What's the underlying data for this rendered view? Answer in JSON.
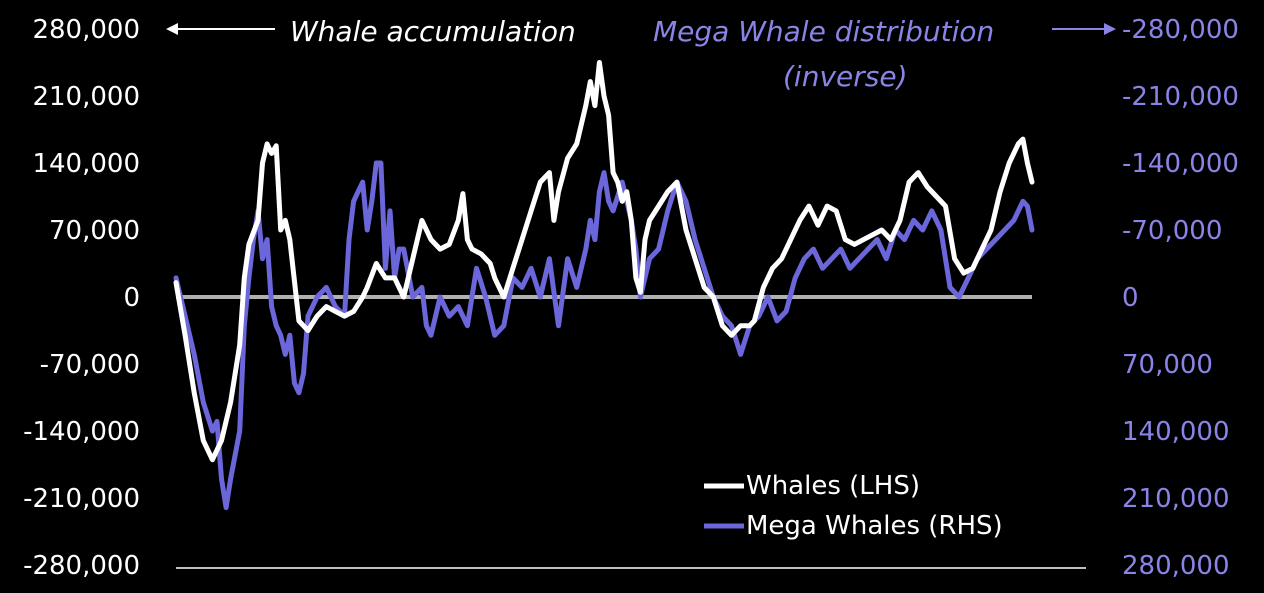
{
  "chart_data": {
    "type": "line",
    "title_left": "Whale accumulation",
    "title_right_line1": "Mega Whale distribution",
    "title_right_line2": "(inverse)",
    "y_left": {
      "ticks": [
        "280,000",
        "210,000",
        "140,000",
        "70,000",
        "0",
        "-70,000",
        "-140,000",
        "-210,000",
        "-280,000"
      ],
      "range": [
        -280000,
        280000
      ]
    },
    "y_right": {
      "ticks": [
        "-280,000",
        "-210,000",
        "-140,000",
        "-70,000",
        "0",
        "70,000",
        "140,000",
        "210,000",
        "280,000"
      ],
      "range_inverted": [
        280000,
        -280000
      ]
    },
    "legend": {
      "whales": "Whales (LHS)",
      "mega": "Mega Whales (RHS)"
    },
    "colors": {
      "whales": "#ffffff",
      "mega": "#6b66d9",
      "mega_text": "#8a84e6",
      "zero_line": "#b0b0b0",
      "background": "#000000"
    },
    "series": [
      {
        "name": "Whales (LHS)",
        "axis": "left",
        "points": [
          [
            0,
            15000
          ],
          [
            2,
            -40000
          ],
          [
            4,
            -100000
          ],
          [
            6,
            -150000
          ],
          [
            8,
            -170000
          ],
          [
            10,
            -150000
          ],
          [
            12,
            -110000
          ],
          [
            14,
            -50000
          ],
          [
            15,
            20000
          ],
          [
            16,
            55000
          ],
          [
            18,
            80000
          ],
          [
            19,
            140000
          ],
          [
            20,
            160000
          ],
          [
            21,
            150000
          ],
          [
            22,
            158000
          ],
          [
            23,
            70000
          ],
          [
            24,
            80000
          ],
          [
            25,
            60000
          ],
          [
            27,
            -25000
          ],
          [
            29,
            -35000
          ],
          [
            31,
            -20000
          ],
          [
            33,
            -10000
          ],
          [
            35,
            -15000
          ],
          [
            37,
            -20000
          ],
          [
            39,
            -15000
          ],
          [
            41,
            0
          ],
          [
            42,
            10000
          ],
          [
            44,
            35000
          ],
          [
            46,
            20000
          ],
          [
            48,
            20000
          ],
          [
            50,
            0
          ],
          [
            52,
            40000
          ],
          [
            54,
            80000
          ],
          [
            56,
            60000
          ],
          [
            58,
            50000
          ],
          [
            60,
            55000
          ],
          [
            62,
            80000
          ],
          [
            63,
            108000
          ],
          [
            64,
            60000
          ],
          [
            65,
            50000
          ],
          [
            67,
            45000
          ],
          [
            69,
            35000
          ],
          [
            70,
            20000
          ],
          [
            72,
            0
          ],
          [
            74,
            30000
          ],
          [
            76,
            60000
          ],
          [
            78,
            90000
          ],
          [
            80,
            120000
          ],
          [
            82,
            130000
          ],
          [
            83,
            80000
          ],
          [
            84,
            110000
          ],
          [
            86,
            145000
          ],
          [
            88,
            160000
          ],
          [
            90,
            200000
          ],
          [
            91,
            225000
          ],
          [
            92,
            200000
          ],
          [
            93,
            245000
          ],
          [
            94,
            210000
          ],
          [
            95,
            190000
          ],
          [
            96,
            130000
          ],
          [
            97,
            120000
          ],
          [
            98,
            100000
          ],
          [
            99,
            110000
          ],
          [
            100,
            80000
          ],
          [
            101,
            20000
          ],
          [
            102,
            5000
          ],
          [
            103,
            60000
          ],
          [
            104,
            80000
          ],
          [
            106,
            95000
          ],
          [
            108,
            110000
          ],
          [
            110,
            120000
          ],
          [
            112,
            70000
          ],
          [
            114,
            40000
          ],
          [
            116,
            10000
          ],
          [
            118,
            0
          ],
          [
            120,
            -30000
          ],
          [
            122,
            -40000
          ],
          [
            124,
            -30000
          ],
          [
            126,
            -30000
          ],
          [
            127,
            -25000
          ],
          [
            129,
            10000
          ],
          [
            131,
            30000
          ],
          [
            133,
            40000
          ],
          [
            135,
            60000
          ],
          [
            137,
            80000
          ],
          [
            139,
            95000
          ],
          [
            141,
            75000
          ],
          [
            143,
            95000
          ],
          [
            145,
            90000
          ],
          [
            147,
            60000
          ],
          [
            149,
            55000
          ],
          [
            151,
            60000
          ],
          [
            153,
            65000
          ],
          [
            155,
            70000
          ],
          [
            157,
            60000
          ],
          [
            159,
            80000
          ],
          [
            161,
            120000
          ],
          [
            163,
            130000
          ],
          [
            165,
            115000
          ],
          [
            167,
            105000
          ],
          [
            169,
            95000
          ],
          [
            171,
            40000
          ],
          [
            173,
            25000
          ],
          [
            175,
            30000
          ],
          [
            177,
            50000
          ],
          [
            179,
            70000
          ],
          [
            181,
            110000
          ],
          [
            183,
            140000
          ],
          [
            185,
            160000
          ],
          [
            186,
            165000
          ],
          [
            187,
            140000
          ],
          [
            188,
            120000
          ]
        ]
      },
      {
        "name": "Mega Whales (RHS)",
        "axis": "right",
        "points": [
          [
            0,
            -20000
          ],
          [
            2,
            20000
          ],
          [
            4,
            60000
          ],
          [
            6,
            110000
          ],
          [
            8,
            140000
          ],
          [
            9,
            130000
          ],
          [
            10,
            190000
          ],
          [
            11,
            220000
          ],
          [
            12,
            190000
          ],
          [
            14,
            140000
          ],
          [
            15,
            30000
          ],
          [
            16,
            -20000
          ],
          [
            17,
            -60000
          ],
          [
            18,
            -90000
          ],
          [
            19,
            -40000
          ],
          [
            20,
            -60000
          ],
          [
            21,
            10000
          ],
          [
            22,
            30000
          ],
          [
            23,
            40000
          ],
          [
            24,
            60000
          ],
          [
            25,
            40000
          ],
          [
            26,
            90000
          ],
          [
            27,
            100000
          ],
          [
            28,
            80000
          ],
          [
            29,
            20000
          ],
          [
            31,
            0
          ],
          [
            33,
            -10000
          ],
          [
            35,
            10000
          ],
          [
            37,
            20000
          ],
          [
            38,
            -60000
          ],
          [
            39,
            -100000
          ],
          [
            40,
            -110000
          ],
          [
            41,
            -120000
          ],
          [
            42,
            -70000
          ],
          [
            43,
            -100000
          ],
          [
            44,
            -140000
          ],
          [
            45,
            -140000
          ],
          [
            46,
            -30000
          ],
          [
            47,
            -90000
          ],
          [
            48,
            -20000
          ],
          [
            49,
            -50000
          ],
          [
            50,
            -50000
          ],
          [
            52,
            0
          ],
          [
            54,
            -10000
          ],
          [
            55,
            30000
          ],
          [
            56,
            40000
          ],
          [
            58,
            0
          ],
          [
            60,
            20000
          ],
          [
            62,
            10000
          ],
          [
            64,
            30000
          ],
          [
            66,
            -30000
          ],
          [
            68,
            0
          ],
          [
            70,
            40000
          ],
          [
            72,
            30000
          ],
          [
            74,
            -20000
          ],
          [
            76,
            -10000
          ],
          [
            78,
            -30000
          ],
          [
            80,
            0
          ],
          [
            82,
            -40000
          ],
          [
            84,
            30000
          ],
          [
            86,
            -40000
          ],
          [
            88,
            -10000
          ],
          [
            89,
            -30000
          ],
          [
            90,
            -50000
          ],
          [
            91,
            -80000
          ],
          [
            92,
            -60000
          ],
          [
            93,
            -110000
          ],
          [
            94,
            -130000
          ],
          [
            95,
            -100000
          ],
          [
            96,
            -90000
          ],
          [
            98,
            -120000
          ],
          [
            100,
            -80000
          ],
          [
            101,
            -50000
          ],
          [
            102,
            0
          ],
          [
            104,
            -40000
          ],
          [
            106,
            -50000
          ],
          [
            108,
            -90000
          ],
          [
            110,
            -120000
          ],
          [
            112,
            -100000
          ],
          [
            114,
            -60000
          ],
          [
            116,
            -30000
          ],
          [
            118,
            0
          ],
          [
            120,
            20000
          ],
          [
            122,
            30000
          ],
          [
            124,
            60000
          ],
          [
            126,
            30000
          ],
          [
            128,
            20000
          ],
          [
            130,
            0
          ],
          [
            132,
            25000
          ],
          [
            134,
            15000
          ],
          [
            136,
            -20000
          ],
          [
            138,
            -40000
          ],
          [
            140,
            -50000
          ],
          [
            142,
            -30000
          ],
          [
            144,
            -40000
          ],
          [
            146,
            -50000
          ],
          [
            148,
            -30000
          ],
          [
            150,
            -40000
          ],
          [
            152,
            -50000
          ],
          [
            154,
            -60000
          ],
          [
            156,
            -40000
          ],
          [
            158,
            -70000
          ],
          [
            160,
            -60000
          ],
          [
            162,
            -80000
          ],
          [
            164,
            -70000
          ],
          [
            166,
            -90000
          ],
          [
            168,
            -70000
          ],
          [
            170,
            -10000
          ],
          [
            172,
            0
          ],
          [
            174,
            -20000
          ],
          [
            176,
            -40000
          ],
          [
            178,
            -50000
          ],
          [
            180,
            -60000
          ],
          [
            182,
            -70000
          ],
          [
            184,
            -80000
          ],
          [
            186,
            -100000
          ],
          [
            187,
            -95000
          ],
          [
            188,
            -70000
          ]
        ]
      }
    ]
  }
}
